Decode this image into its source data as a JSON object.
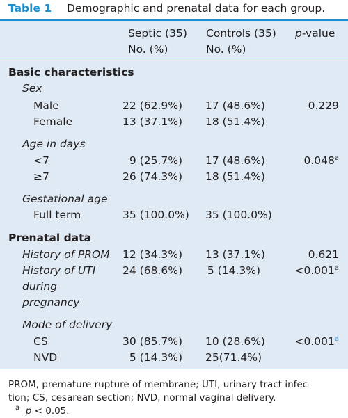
{
  "title": {
    "label": "Table 1",
    "caption": "Demographic and prenatal data for each group."
  },
  "header": {
    "septic_line1": "Septic (35)",
    "septic_line2": "No. (%)",
    "controls_line1": "Controls (35)",
    "controls_line2": "No. (%)",
    "pvalue_prefix": "p",
    "pvalue_suffix": "-value"
  },
  "sections": {
    "basic": "Basic characteristics",
    "prenatal": "Prenatal data"
  },
  "rows": {
    "sex": "Sex",
    "male": {
      "label": "Male",
      "septic": "22 (62.9%)",
      "controls": "17 (48.6%)",
      "p": "0.229"
    },
    "female": {
      "label": "Female",
      "septic": "13 (37.1%)",
      "controls": "18 (51.4%)"
    },
    "age": "Age in days",
    "lt7": {
      "label": "<7",
      "septic": "9 (25.7%)",
      "controls": "17 (48.6%)",
      "p": "0.048",
      "p_sup": "a"
    },
    "ge7": {
      "label": "≥7",
      "septic": "26 (74.3%)",
      "controls": "18 (51.4%)"
    },
    "gest": "Gestational age",
    "fullterm": {
      "label": "Full term",
      "septic": "35 (100.0%)",
      "controls": "35 (100.0%)"
    },
    "prom": {
      "label": "History of PROM",
      "septic": "12 (34.3%)",
      "controls": "13 (37.1%)",
      "p": "0.621"
    },
    "uti": {
      "label1": "History of UTI",
      "label2": "during",
      "label3": "pregnancy",
      "septic": "24 (68.6%)",
      "controls": "5 (14.3%)",
      "p": "<0.001",
      "p_sup": "a"
    },
    "mode": "Mode of delivery",
    "cs": {
      "label": "CS",
      "septic": "30 (85.7%)",
      "controls": "10 (28.6%)",
      "p": "<0.001",
      "p_sup": "a"
    },
    "nvd": {
      "label": "NVD",
      "septic": "5 (14.3%)",
      "controls": "25(71.4%)"
    }
  },
  "footnote": {
    "line1": "PROM, premature rupture of membrane; UTI, urinary tract infec-",
    "line2": "tion; CS, cesarean section; NVD, normal vaginal delivery.",
    "a_sup": "a",
    "a_text": "p",
    "a_rest": " < 0.05."
  },
  "colors": {
    "accent": "#1d8fcf",
    "panel": "#dfeaf5"
  }
}
